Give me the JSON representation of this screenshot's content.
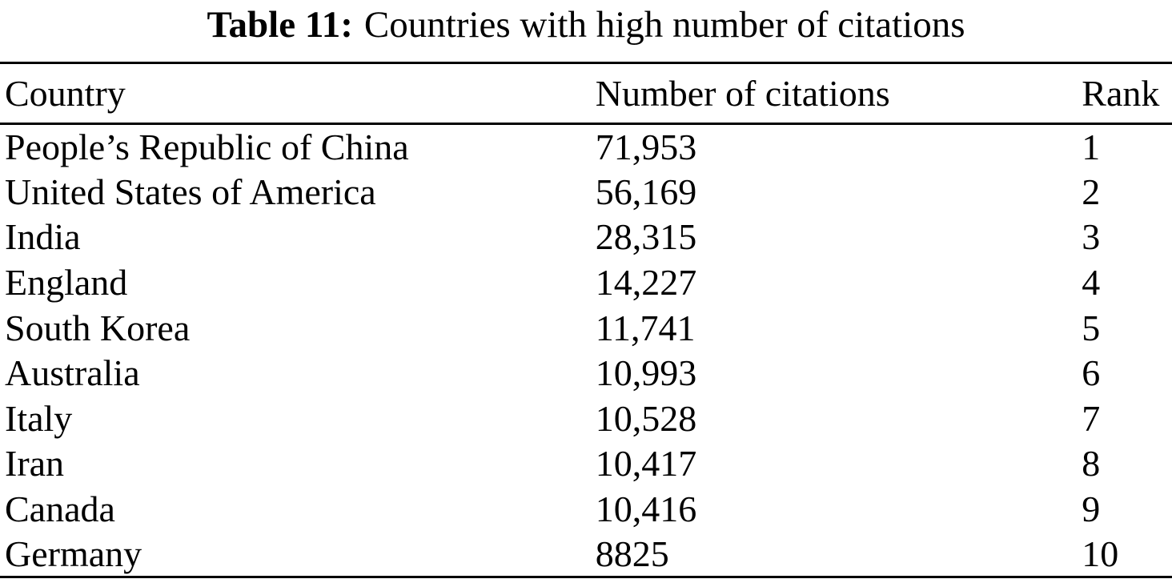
{
  "caption": {
    "label": "Table 11:",
    "text": "Countries with high number of citations"
  },
  "table": {
    "columns": [
      "Country",
      "Number of citations",
      "Rank"
    ],
    "rows": [
      {
        "country": "People’s Republic of China",
        "citations": "71,953",
        "rank": "1"
      },
      {
        "country": "United States of America",
        "citations": "56,169",
        "rank": "2"
      },
      {
        "country": "India",
        "citations": "28,315",
        "rank": "3"
      },
      {
        "country": "England",
        "citations": "14,227",
        "rank": "4"
      },
      {
        "country": "South Korea",
        "citations": "11,741",
        "rank": "5"
      },
      {
        "country": "Australia",
        "citations": "10,993",
        "rank": "6"
      },
      {
        "country": "Italy",
        "citations": "10,528",
        "rank": "7"
      },
      {
        "country": "Iran",
        "citations": "10,417",
        "rank": "8"
      },
      {
        "country": "Canada",
        "citations": "10,416",
        "rank": "9"
      },
      {
        "country": "Germany",
        "citations": "8825",
        "rank": "10"
      }
    ]
  },
  "chart_data": {
    "type": "table",
    "title": "Table 11: Countries with high number of citations",
    "columns": [
      "Country",
      "Number of citations",
      "Rank"
    ],
    "categories": [
      "People’s Republic of China",
      "United States of America",
      "India",
      "England",
      "South Korea",
      "Australia",
      "Italy",
      "Iran",
      "Canada",
      "Germany"
    ],
    "values": [
      71953,
      56169,
      28315,
      14227,
      11741,
      10993,
      10528,
      10417,
      10416,
      8825
    ],
    "ranks": [
      1,
      2,
      3,
      4,
      5,
      6,
      7,
      8,
      9,
      10
    ]
  },
  "colors": {
    "text": "#000000",
    "background": "#ffffff",
    "rule": "#000000"
  }
}
